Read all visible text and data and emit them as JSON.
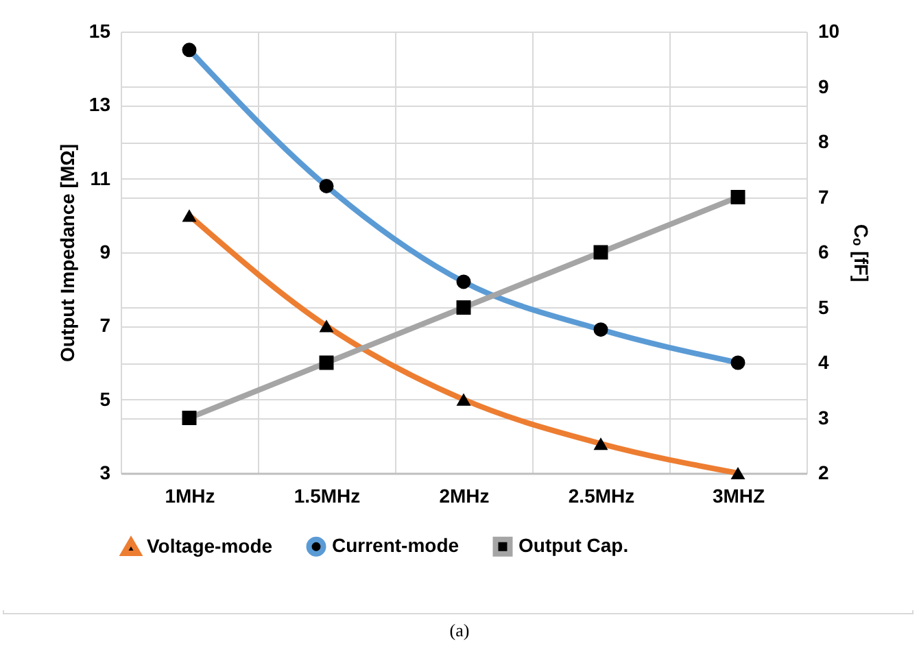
{
  "chart_data": {
    "type": "line",
    "ylabel": "Output Impedance [MΩ]",
    "y2label": "Cₒ [fF]",
    "categories": [
      "1MHz",
      "1.5MHz",
      "2MHz",
      "2.5MHz",
      "3MHZ"
    ],
    "series": [
      {
        "name": "Voltage-mode",
        "color": "#ed7d31",
        "marker": "triangle",
        "values": [
          10,
          7,
          5,
          3.8,
          3
        ]
      },
      {
        "name": "Current-mode",
        "color": "#5b9bd5",
        "marker": "circle",
        "values": [
          14.5,
          10.8,
          8.2,
          6.9,
          6
        ]
      },
      {
        "name": "Output Cap.",
        "color": "#a5a5a5",
        "marker": "square",
        "axis": "y2",
        "values": [
          3,
          4,
          5,
          6,
          7
        ]
      }
    ],
    "ylim": [
      3,
      15
    ],
    "yticks": [
      3,
      5,
      7,
      9,
      11,
      13,
      15
    ],
    "y2lim": [
      2,
      10
    ],
    "y2ticks": [
      2,
      3,
      4,
      5,
      6,
      7,
      8,
      9,
      10
    ],
    "grid": true,
    "legend": "bottom",
    "annotations": [
      "(a)"
    ]
  }
}
